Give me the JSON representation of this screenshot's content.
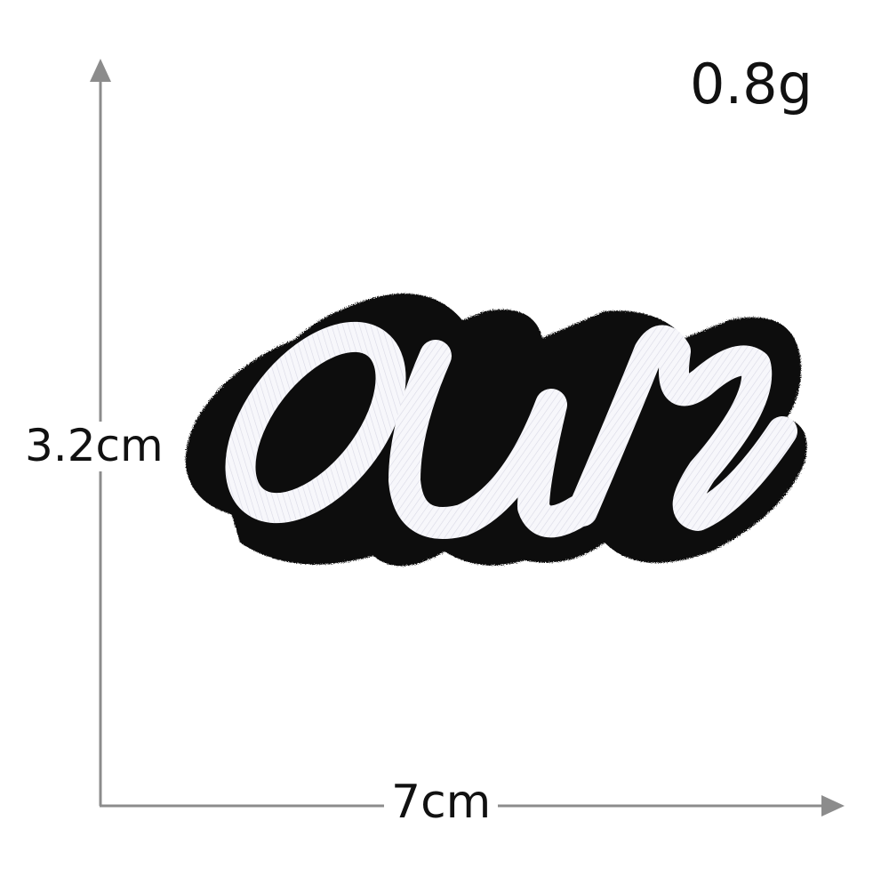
{
  "product": {
    "name": "embroidered-patch",
    "patch_text": "our",
    "border_color": "#0d0d0d",
    "thread_color": "#f7f7fb"
  },
  "measurements": {
    "weight": "0.8g",
    "height": "3.2cm",
    "width": "7cm"
  },
  "colors": {
    "axis": "#8c8c8c",
    "label": "#111111",
    "background": "#ffffff"
  }
}
